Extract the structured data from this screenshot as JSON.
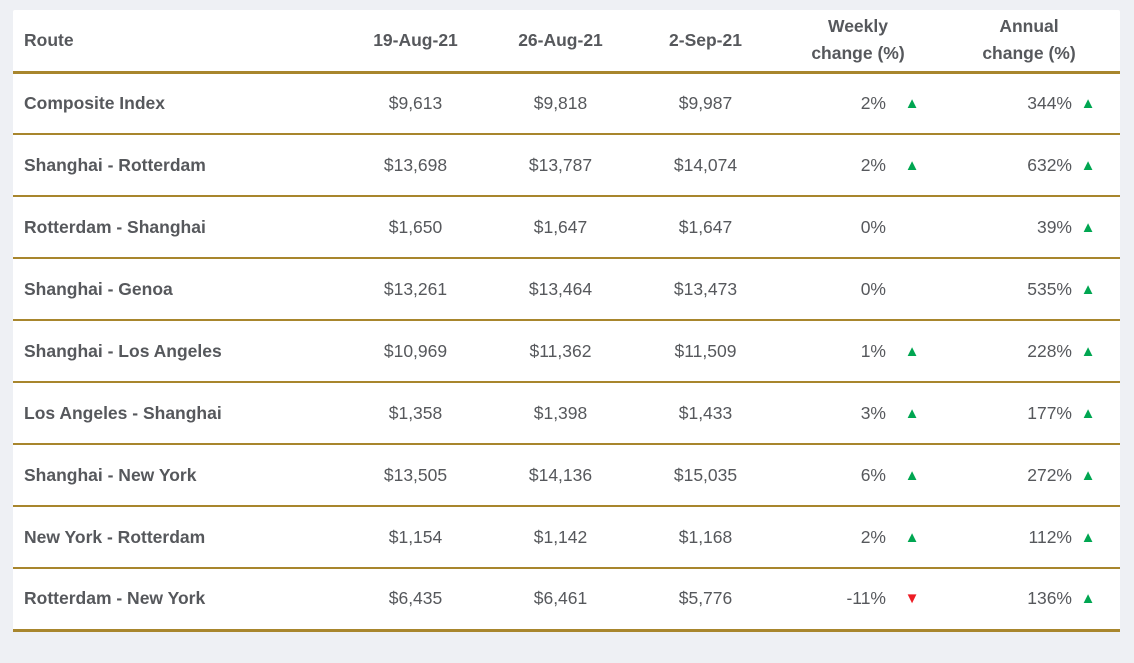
{
  "colors": {
    "gold": "#a8862d",
    "up": "#00a651",
    "down": "#ed1c24",
    "text": "#56585c",
    "card_bg": "#ffffff",
    "page_bg": "#eef0f4"
  },
  "icons": {
    "up": "▲",
    "down": "▼"
  },
  "table": {
    "header": {
      "route": "Route",
      "dates": [
        "19-Aug-21",
        "26-Aug-21",
        "2-Sep-21"
      ],
      "weekly": "Weekly change (%)",
      "annual": "Annual change (%)"
    },
    "rows": [
      {
        "route": "Composite Index",
        "values": [
          "$9,613",
          "$9,818",
          "$9,987"
        ],
        "weekly": "2%",
        "weekly_dir": "up",
        "annual": "344%",
        "annual_dir": "up"
      },
      {
        "route": "Shanghai - Rotterdam",
        "values": [
          "$13,698",
          "$13,787",
          "$14,074"
        ],
        "weekly": "2%",
        "weekly_dir": "up",
        "annual": "632%",
        "annual_dir": "up"
      },
      {
        "route": "Rotterdam - Shanghai",
        "values": [
          "$1,650",
          "$1,647",
          "$1,647"
        ],
        "weekly": "0%",
        "weekly_dir": "none",
        "annual": "39%",
        "annual_dir": "up"
      },
      {
        "route": "Shanghai - Genoa",
        "values": [
          "$13,261",
          "$13,464",
          "$13,473"
        ],
        "weekly": "0%",
        "weekly_dir": "none",
        "annual": "535%",
        "annual_dir": "up"
      },
      {
        "route": "Shanghai - Los Angeles",
        "values": [
          "$10,969",
          "$11,362",
          "$11,509"
        ],
        "weekly": "1%",
        "weekly_dir": "up",
        "annual": "228%",
        "annual_dir": "up"
      },
      {
        "route": "Los Angeles - Shanghai",
        "values": [
          "$1,358",
          "$1,398",
          "$1,433"
        ],
        "weekly": "3%",
        "weekly_dir": "up",
        "annual": "177%",
        "annual_dir": "up"
      },
      {
        "route": "Shanghai - New York",
        "values": [
          "$13,505",
          "$14,136",
          "$15,035"
        ],
        "weekly": "6%",
        "weekly_dir": "up",
        "annual": "272%",
        "annual_dir": "up"
      },
      {
        "route": "New York - Rotterdam",
        "values": [
          "$1,154",
          "$1,142",
          "$1,168"
        ],
        "weekly": "2%",
        "weekly_dir": "up",
        "annual": "112%",
        "annual_dir": "up"
      },
      {
        "route": "Rotterdam - New York",
        "values": [
          "$6,435",
          "$6,461",
          "$5,776"
        ],
        "weekly": "-11%",
        "weekly_dir": "down",
        "annual": "136%",
        "annual_dir": "up"
      }
    ]
  },
  "chart_data": {
    "type": "table",
    "columns": [
      "Route",
      "19-Aug-21",
      "26-Aug-21",
      "2-Sep-21",
      "Weekly change (%)",
      "Annual change (%)"
    ],
    "rows": [
      {
        "route": "Composite Index",
        "rates_usd": [
          9613,
          9818,
          9987
        ],
        "weekly_change_pct": 2,
        "weekly_direction": "up",
        "annual_change_pct": 344,
        "annual_direction": "up"
      },
      {
        "route": "Shanghai - Rotterdam",
        "rates_usd": [
          13698,
          13787,
          14074
        ],
        "weekly_change_pct": 2,
        "weekly_direction": "up",
        "annual_change_pct": 632,
        "annual_direction": "up"
      },
      {
        "route": "Rotterdam - Shanghai",
        "rates_usd": [
          1650,
          1647,
          1647
        ],
        "weekly_change_pct": 0,
        "weekly_direction": "none",
        "annual_change_pct": 39,
        "annual_direction": "up"
      },
      {
        "route": "Shanghai - Genoa",
        "rates_usd": [
          13261,
          13464,
          13473
        ],
        "weekly_change_pct": 0,
        "weekly_direction": "none",
        "annual_change_pct": 535,
        "annual_direction": "up"
      },
      {
        "route": "Shanghai - Los Angeles",
        "rates_usd": [
          10969,
          11362,
          11509
        ],
        "weekly_change_pct": 1,
        "weekly_direction": "up",
        "annual_change_pct": 228,
        "annual_direction": "up"
      },
      {
        "route": "Los Angeles - Shanghai",
        "rates_usd": [
          1358,
          1398,
          1433
        ],
        "weekly_change_pct": 3,
        "weekly_direction": "up",
        "annual_change_pct": 177,
        "annual_direction": "up"
      },
      {
        "route": "Shanghai - New York",
        "rates_usd": [
          13505,
          14136,
          15035
        ],
        "weekly_change_pct": 6,
        "weekly_direction": "up",
        "annual_change_pct": 272,
        "annual_direction": "up"
      },
      {
        "route": "New York - Rotterdam",
        "rates_usd": [
          1154,
          1142,
          1168
        ],
        "weekly_change_pct": 2,
        "weekly_direction": "up",
        "annual_change_pct": 112,
        "annual_direction": "up"
      },
      {
        "route": "Rotterdam - New York",
        "rates_usd": [
          6435,
          6461,
          5776
        ],
        "weekly_change_pct": -11,
        "weekly_direction": "down",
        "annual_change_pct": 136,
        "annual_direction": "up"
      }
    ]
  }
}
